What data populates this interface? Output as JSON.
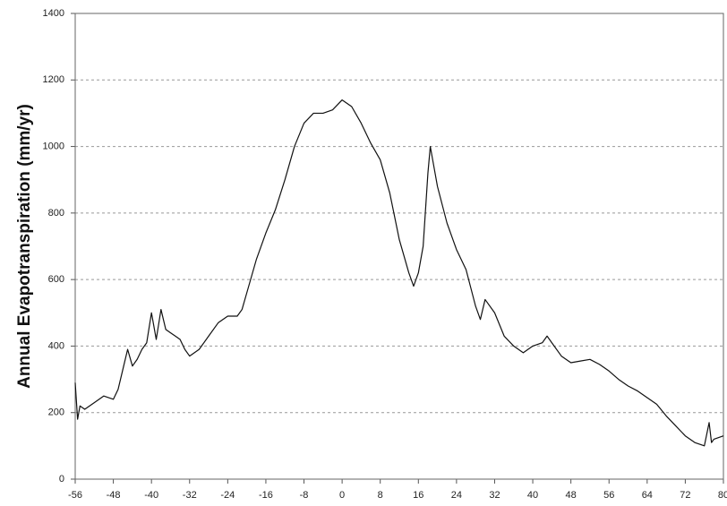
{
  "chart_data": {
    "type": "line",
    "y_label": "Annual Evapotranspiration (mm/yr)",
    "xlim": [
      -56,
      80
    ],
    "ylim": [
      0,
      1400
    ],
    "xticks": [
      -56,
      -48,
      -40,
      -32,
      -24,
      -16,
      -8,
      0,
      8,
      16,
      24,
      32,
      40,
      48,
      56,
      64,
      72,
      80
    ],
    "yticks": [
      0,
      200,
      400,
      600,
      800,
      1000,
      1200,
      1400
    ],
    "grid": true,
    "series": [
      {
        "color": "#111111",
        "x": [
          -56,
          -55.5,
          -55,
          -54,
          -52,
          -50,
          -48,
          -47,
          -46,
          -45,
          -44,
          -43,
          -42,
          -41,
          -40,
          -39,
          -38,
          -37,
          -36,
          -35,
          -34,
          -33,
          -32,
          -30,
          -28,
          -26,
          -24,
          -22,
          -21,
          -20,
          -18,
          -16,
          -14,
          -12,
          -10,
          -8,
          -6,
          -4,
          -2,
          0,
          2,
          4,
          6,
          8,
          10,
          12,
          14,
          15,
          16,
          17,
          18,
          18.5,
          19,
          20,
          22,
          24,
          26,
          28,
          29,
          30,
          32,
          34,
          36,
          38,
          40,
          42,
          43,
          44,
          46,
          48,
          50,
          52,
          54,
          56,
          58,
          60,
          62,
          64,
          66,
          68,
          70,
          72,
          74,
          76,
          77,
          77.5,
          78,
          80
        ],
        "values": [
          290,
          180,
          220,
          210,
          230,
          250,
          240,
          270,
          330,
          390,
          340,
          360,
          390,
          410,
          500,
          420,
          510,
          450,
          440,
          430,
          420,
          390,
          370,
          390,
          430,
          470,
          490,
          490,
          510,
          560,
          660,
          740,
          810,
          900,
          1000,
          1070,
          1100,
          1100,
          1110,
          1140,
          1120,
          1070,
          1010,
          960,
          860,
          720,
          620,
          580,
          620,
          700,
          920,
          1000,
          960,
          880,
          770,
          690,
          630,
          520,
          480,
          540,
          500,
          430,
          400,
          380,
          400,
          410,
          430,
          410,
          370,
          350,
          355,
          360,
          345,
          325,
          300,
          280,
          265,
          245,
          225,
          190,
          160,
          130,
          110,
          100,
          170,
          110,
          120,
          130
        ]
      }
    ]
  }
}
